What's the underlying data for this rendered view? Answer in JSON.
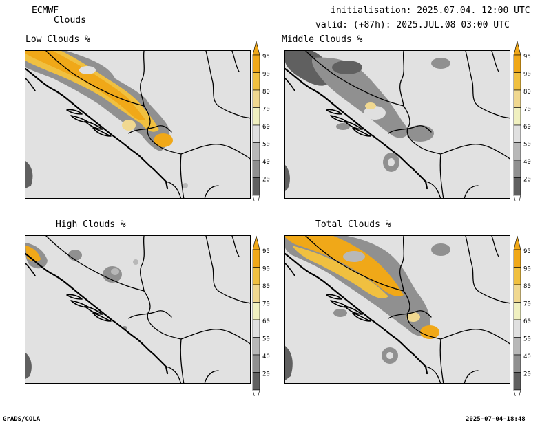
{
  "header": {
    "source": "ECMWF",
    "variable": "Clouds",
    "init_label": "initialisation:",
    "init_value": "2025.07.04. 12:00 UTC",
    "valid_label": "valid: (+87h):",
    "valid_value": "2025.JUL.08 03:00 UTC"
  },
  "panels": [
    {
      "key": "low",
      "title": "Low Clouds %"
    },
    {
      "key": "middle",
      "title": "Middle Clouds %"
    },
    {
      "key": "high",
      "title": "High Clouds %"
    },
    {
      "key": "total",
      "title": "Total Clouds %"
    }
  ],
  "colorbar": {
    "levels": [
      "95",
      "90",
      "80",
      "70",
      "60",
      "50",
      "40",
      "20"
    ],
    "colors": {
      "c95": "#f0a818",
      "c90": "#f0c040",
      "c80": "#f0d890",
      "c70": "#f0f0c0",
      "c60": "#e0e0e0",
      "c50": "#b8b8b8",
      "c40": "#909090",
      "c20": "#606060"
    }
  },
  "colors": {
    "land": "#e1e1e1",
    "border": "#000000"
  },
  "footer": {
    "left": "GrADS/COLA",
    "right": "2025-07-04-18:48"
  }
}
